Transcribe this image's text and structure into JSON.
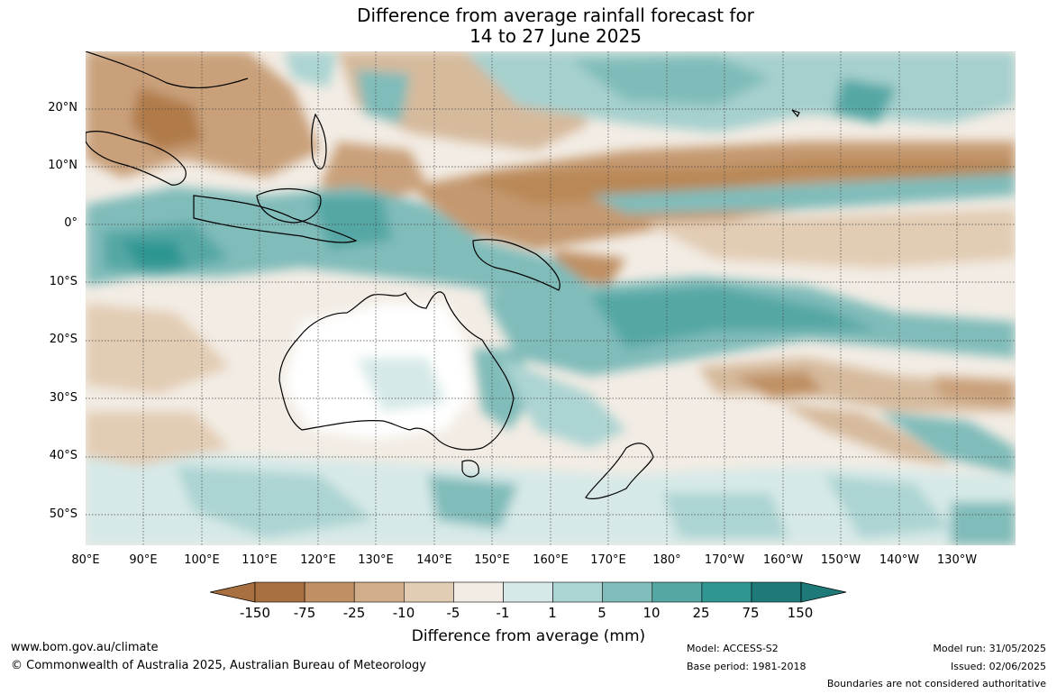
{
  "title": {
    "line1": "Difference from average rainfall forecast for",
    "line2": "14 to 27 June 2025"
  },
  "map": {
    "latitudes": [
      "20°N",
      "10°N",
      "0°",
      "10°S",
      "20°S",
      "30°S",
      "40°S",
      "50°S"
    ],
    "longitudes": [
      "80°E",
      "90°E",
      "100°E",
      "110°E",
      "120°E",
      "130°E",
      "140°E",
      "150°E",
      "160°E",
      "170°E",
      "180°",
      "170°W",
      "160°W",
      "150°W",
      "140°W",
      "130°W"
    ]
  },
  "legend": {
    "title": "Difference from average (mm)",
    "ticks": [
      "-150",
      "-75",
      "-25",
      "-10",
      "-5",
      "-1",
      "1",
      "5",
      "10",
      "25",
      "75",
      "150"
    ],
    "colors": [
      "#a87040",
      "#bf9064",
      "#d1ae8a",
      "#e2ccb4",
      "#f2ece4",
      "#ffffff",
      "#d6e9e8",
      "#acd4d2",
      "#80bcba",
      "#55a7a5",
      "#2f9692",
      "#1e7a78"
    ]
  },
  "footer": {
    "website": "www.bom.gov.au/climate",
    "copyright": "© Commonwealth of Australia 2025, Australian Bureau of Meteorology",
    "model": "Model: ACCESS-S2",
    "base_period": "Base period: 1981-2018",
    "model_run": "Model run: 31/05/2025",
    "issued": "Issued: 02/06/2025",
    "boundaries": "Boundaries are not considered authoritative"
  }
}
